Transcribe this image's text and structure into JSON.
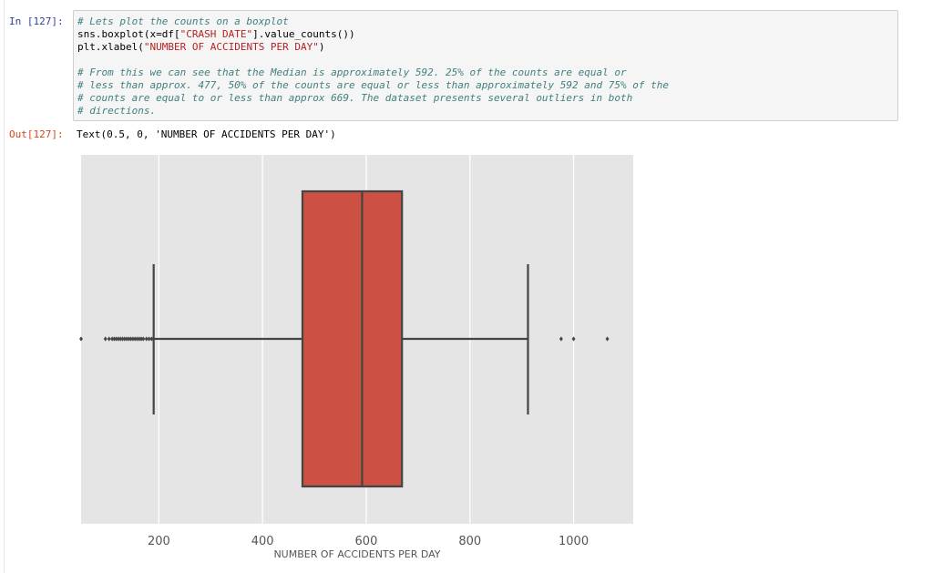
{
  "input_cell": {
    "prompt": "In [127]:",
    "code_lines": [
      [
        {
          "t": "# Lets plot the counts on a boxplot",
          "c": "cm"
        }
      ],
      [
        {
          "t": "sns.boxplot(x=df[",
          "c": ""
        },
        {
          "t": "\"CRASH DATE\"",
          "c": "st"
        },
        {
          "t": "].value_counts())",
          "c": ""
        }
      ],
      [
        {
          "t": "plt.xlabel(",
          "c": ""
        },
        {
          "t": "\"NUMBER OF ACCIDENTS PER DAY\"",
          "c": "st"
        },
        {
          "t": ")",
          "c": ""
        }
      ],
      [],
      [
        {
          "t": "# From this we can see that the Median is approximately 592. 25% of the counts are equal or",
          "c": "cm"
        }
      ],
      [
        {
          "t": "# less than approx. 477, 50% of the counts are equal or less than approximately 592 and 75% of the",
          "c": "cm"
        }
      ],
      [
        {
          "t": "# counts are equal to or less than approx 669. The dataset presents several outliers in both",
          "c": "cm"
        }
      ],
      [
        {
          "t": "# directions.",
          "c": "cm"
        }
      ]
    ]
  },
  "output_cell": {
    "prompt": "Out[127]:",
    "text": "Text(0.5, 0, 'NUMBER OF ACCIDENTS PER DAY')"
  },
  "chart_data": {
    "type": "boxplot",
    "xlabel": "NUMBER OF ACCIDENTS PER DAY",
    "xlim": [
      50,
      1115
    ],
    "xticks": [
      200,
      400,
      600,
      800,
      1000
    ],
    "grid": true,
    "box": {
      "whisker_low": 190,
      "q1": 477,
      "median": 592,
      "q3": 669,
      "whisker_high": 912
    },
    "outliers_low": [
      50,
      97,
      104,
      110,
      114,
      118,
      122,
      126,
      130,
      134,
      138,
      142,
      146,
      150,
      154,
      158,
      162,
      166,
      170,
      176,
      181,
      186
    ],
    "outliers_high": [
      976,
      1000,
      1065
    ],
    "colors": {
      "box_fill": "#cc5142",
      "line": "#444444",
      "background": "#e5e5e5",
      "grid": "#ffffff"
    }
  }
}
